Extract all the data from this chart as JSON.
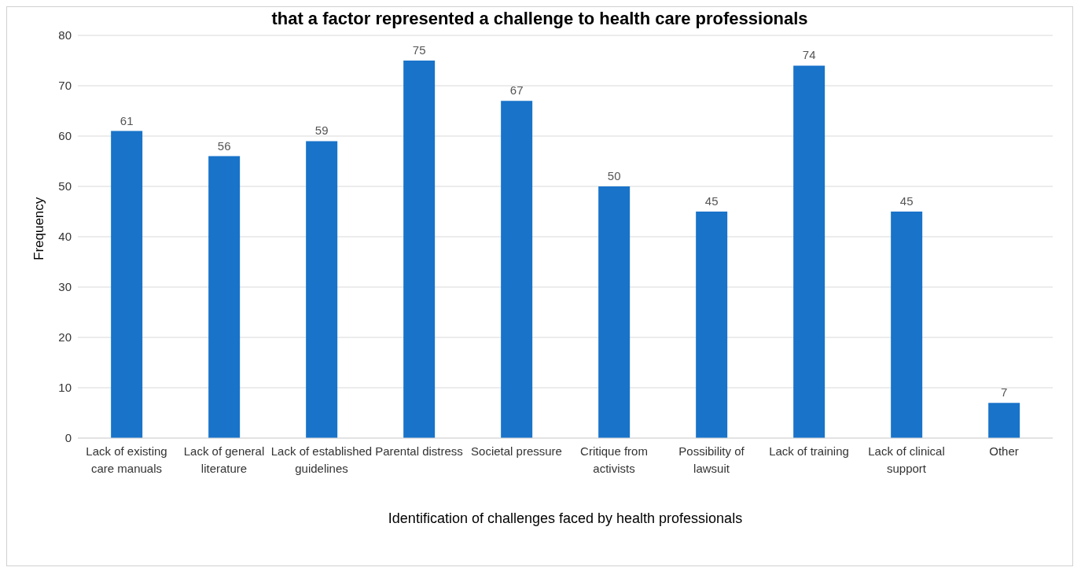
{
  "chart_data": {
    "type": "bar",
    "title": "that a factor represented a challenge to health care professionals",
    "xlabel": "Identification of challenges faced by health professionals",
    "ylabel": "Frequency",
    "categories": [
      "Lack of existing care manuals",
      "Lack of general literature",
      "Lack of established guidelines",
      "Parental distress",
      "Societal pressure",
      "Critique from activists",
      "Possibility of lawsuit",
      "Lack of training",
      "Lack of clinical support",
      "Other"
    ],
    "values": [
      61,
      56,
      59,
      75,
      67,
      50,
      45,
      74,
      45,
      7
    ],
    "color": "#1873c9",
    "ylim": [
      0,
      80
    ],
    "yticks": [
      0,
      10,
      20,
      30,
      40,
      50,
      60,
      70,
      80
    ],
    "grid": "y",
    "data_labels": true,
    "legend": false
  }
}
